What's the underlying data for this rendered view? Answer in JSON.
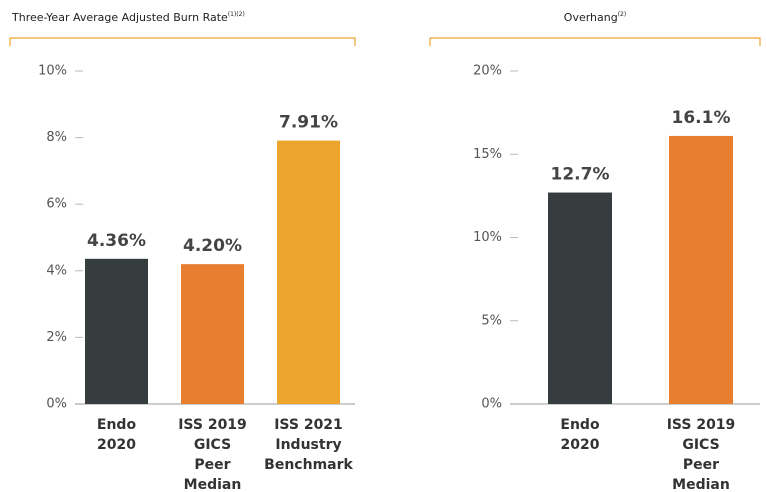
{
  "chart_data": [
    {
      "type": "bar",
      "title": "Three-Year Average Adjusted Burn Rate",
      "title_superscript": "(1)(2)",
      "categories": [
        [
          "Endo",
          "2020"
        ],
        [
          "ISS 2019",
          "GICS",
          "Peer",
          "Median"
        ],
        [
          "ISS 2021",
          "Industry",
          "Benchmark"
        ]
      ],
      "values": [
        4.36,
        4.2,
        7.91
      ],
      "value_labels": [
        "4.36%",
        "4.20%",
        "7.91%"
      ],
      "colors": [
        "#363d3f",
        "#e87e30",
        "#eca52d"
      ],
      "ylim": [
        0,
        10
      ],
      "yticks": [
        {
          "value": 0,
          "label": "0%"
        },
        {
          "value": 2,
          "label": "2%"
        },
        {
          "value": 4,
          "label": "4%"
        },
        {
          "value": 6,
          "label": "6%"
        },
        {
          "value": 8,
          "label": "8%"
        },
        {
          "value": 10,
          "label": "10%"
        }
      ]
    },
    {
      "type": "bar",
      "title": "Overhang",
      "title_superscript": "(2)",
      "categories": [
        [
          "Endo",
          "2020"
        ],
        [
          "ISS 2019",
          "GICS",
          "Peer",
          "Median"
        ]
      ],
      "values": [
        12.7,
        16.1
      ],
      "value_labels": [
        "12.7%",
        "16.1%"
      ],
      "colors": [
        "#363d3f",
        "#e87e30"
      ],
      "ylim": [
        0,
        20
      ],
      "yticks": [
        {
          "value": 0,
          "label": "0%"
        },
        {
          "value": 5,
          "label": "5%"
        },
        {
          "value": 10,
          "label": "10%"
        },
        {
          "value": 15,
          "label": "15%"
        },
        {
          "value": 20,
          "label": "20%"
        }
      ]
    }
  ]
}
